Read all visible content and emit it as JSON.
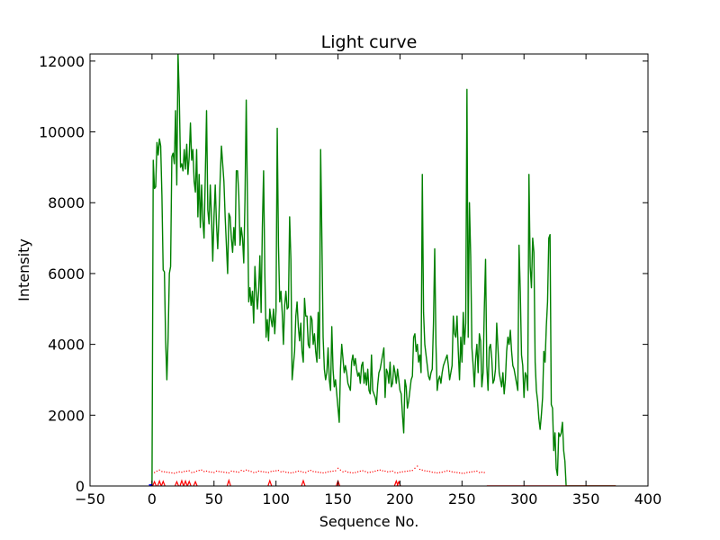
{
  "chart_data": {
    "type": "line",
    "title": "Light curve",
    "xlabel": "Sequence No.",
    "ylabel": "Intensity",
    "xlim": [
      -50,
      400
    ],
    "ylim": [
      0,
      12200
    ],
    "xticks": [
      -50,
      0,
      50,
      100,
      150,
      200,
      250,
      300,
      350,
      400
    ],
    "yticks": [
      0,
      2000,
      4000,
      6000,
      8000,
      10000,
      12000
    ],
    "grid": false,
    "legend": "none",
    "series": [
      {
        "style": "solid-line",
        "color": "#008000",
        "x": [
          0,
          1,
          2,
          3,
          4,
          5,
          6,
          7,
          8,
          9,
          10,
          11,
          12,
          13,
          14,
          15,
          16,
          17,
          18,
          19,
          20,
          21,
          22,
          23,
          24,
          25,
          26,
          27,
          28,
          29,
          30,
          31,
          32,
          33,
          34,
          35,
          36,
          37,
          38,
          39,
          40,
          41,
          42,
          43,
          44,
          45,
          46,
          47,
          48,
          49,
          50,
          51,
          52,
          53,
          54,
          55,
          56,
          57,
          58,
          59,
          60,
          61,
          62,
          63,
          64,
          65,
          66,
          67,
          68,
          69,
          70,
          71,
          72,
          73,
          74,
          75,
          76,
          77,
          78,
          79,
          80,
          81,
          82,
          83,
          84,
          85,
          86,
          87,
          88,
          89,
          90,
          91,
          92,
          93,
          94,
          95,
          96,
          97,
          98,
          99,
          100,
          101,
          102,
          103,
          104,
          105,
          106,
          107,
          108,
          109,
          110,
          111,
          112,
          113,
          114,
          115,
          116,
          117,
          118,
          119,
          120,
          121,
          122,
          123,
          124,
          125,
          126,
          127,
          128,
          129,
          130,
          131,
          132,
          133,
          134,
          135,
          136,
          137,
          138,
          139,
          140,
          141,
          142,
          143,
          144,
          145,
          146,
          147,
          148,
          149,
          150,
          151,
          152,
          153,
          154,
          155,
          156,
          157,
          158,
          159,
          160,
          161,
          162,
          163,
          164,
          165,
          166,
          167,
          168,
          169,
          170,
          171,
          172,
          173,
          174,
          175,
          176,
          177,
          178,
          179,
          180,
          181,
          182,
          183,
          184,
          185,
          186,
          187,
          188,
          189,
          190,
          191,
          192,
          193,
          194,
          195,
          196,
          197,
          198,
          199,
          200,
          201,
          202,
          203,
          204,
          205,
          206,
          207,
          208,
          209,
          210,
          211,
          212,
          213,
          214,
          215,
          216,
          217,
          218,
          219,
          220,
          221,
          222,
          223,
          224,
          225,
          226,
          227,
          228,
          229,
          230,
          231,
          232,
          233,
          234,
          235,
          236,
          237,
          238,
          239,
          240,
          241,
          242,
          243,
          244,
          245,
          246,
          247,
          248,
          249,
          250,
          251,
          252,
          253,
          254,
          255,
          256,
          257,
          258,
          259,
          260,
          261,
          262,
          263,
          264,
          265,
          266,
          267,
          268,
          269,
          270,
          271,
          272,
          273,
          274,
          275,
          276,
          277,
          278,
          279,
          280,
          281,
          282,
          283,
          284,
          285,
          286,
          287,
          288,
          289,
          290,
          291,
          292,
          293,
          294,
          295,
          296,
          297,
          298,
          299,
          300,
          301,
          302,
          303,
          304,
          305,
          306,
          307,
          308,
          309,
          310,
          311,
          312,
          313,
          314,
          315,
          316,
          317,
          318,
          319,
          320,
          321,
          322,
          323,
          324,
          325,
          326,
          327,
          328,
          329,
          330,
          331,
          332,
          333,
          334,
          335,
          336,
          337,
          338,
          339,
          340,
          341,
          342,
          343,
          344,
          345,
          346,
          347,
          348,
          349,
          350,
          351,
          352,
          353,
          354,
          355,
          356,
          357,
          358,
          359,
          360,
          361,
          362,
          363,
          364,
          365,
          366,
          367,
          368,
          369,
          370,
          371,
          372,
          373,
          374
        ],
        "y": [
          0,
          9200,
          8400,
          8450,
          9700,
          9350,
          9800,
          9600,
          8200,
          6100,
          6050,
          4100,
          3000,
          4200,
          6000,
          6200,
          9300,
          9400,
          9100,
          10600,
          8500,
          12200,
          11000,
          9000,
          9100,
          8900,
          9500,
          8950,
          9650,
          8800,
          9300,
          10250,
          9200,
          9500,
          8600,
          8300,
          9500,
          7600,
          8800,
          7300,
          8500,
          7500,
          7000,
          8800,
          10600,
          7800,
          7400,
          8500,
          7600,
          6350,
          7600,
          8500,
          7400,
          6700,
          7600,
          8700,
          9600,
          9100,
          8600,
          7600,
          6800,
          6000,
          7700,
          7600,
          7000,
          6600,
          7300,
          6800,
          8900,
          8900,
          8200,
          6800,
          7300,
          7000,
          6300,
          8100,
          10900,
          8000,
          5200,
          5600,
          5100,
          5500,
          4600,
          6200,
          5500,
          5000,
          5500,
          6500,
          4900,
          7300,
          8900,
          6000,
          4200,
          4700,
          4100,
          5000,
          4700,
          4500,
          5000,
          4300,
          4950,
          10100,
          6800,
          5200,
          5500,
          4900,
          4000,
          5100,
          5500,
          5000,
          5050,
          7600,
          6400,
          3000,
          3400,
          3800,
          4800,
          5200,
          4500,
          4100,
          4600,
          3800,
          3500,
          5300,
          4800,
          4800,
          4000,
          3900,
          4800,
          4700,
          4000,
          4300,
          3800,
          3500,
          4900,
          3600,
          9500,
          7000,
          4200,
          3300,
          3000,
          3200,
          3900,
          3000,
          2700,
          4500,
          3300,
          2800,
          3000,
          2600,
          2200,
          1800,
          3300,
          4000,
          3600,
          3200,
          3400,
          3200,
          2900,
          2800,
          2700,
          3500,
          3700,
          3400,
          3600,
          3300,
          3100,
          3200,
          2900,
          3400,
          3500,
          2900,
          3200,
          2850,
          3300,
          2700,
          2600,
          3700,
          2700,
          2600,
          2500,
          2300,
          2850,
          3200,
          3300,
          3500,
          3700,
          3900,
          2500,
          3300,
          3200,
          2900,
          3500,
          2800,
          2900,
          3400,
          3200,
          2900,
          3300,
          3000,
          2700,
          2600,
          2000,
          1500,
          3000,
          2800,
          2200,
          2400,
          2700,
          3000,
          3100,
          4200,
          4300,
          3800,
          4000,
          3500,
          3700,
          3200,
          8800,
          4900,
          4000,
          3700,
          3400,
          3100,
          3000,
          3200,
          3300,
          4600,
          6700,
          4000,
          2700,
          3000,
          3100,
          2900,
          3200,
          3400,
          3500,
          3600,
          3700,
          3400,
          3000,
          3200,
          3400,
          4800,
          4300,
          4200,
          4800,
          3800,
          3000,
          4200,
          3500,
          4900,
          4000,
          4600,
          11200,
          4200,
          8000,
          6500,
          3900,
          3400,
          2800,
          3600,
          4000,
          3200,
          4300,
          4100,
          2800,
          3200,
          5000,
          6400,
          3400,
          2700,
          3900,
          4000,
          3600,
          2900,
          3000,
          3300,
          4600,
          3900,
          3200,
          3000,
          2800,
          3200,
          2600,
          3000,
          3800,
          4200,
          4000,
          4400,
          3800,
          3400,
          3300,
          3100,
          2900,
          2700,
          6800,
          5500,
          3700,
          3400,
          2500,
          3200,
          3100,
          2700,
          8800,
          6200,
          5600,
          7000,
          6600,
          3500,
          2700,
          2400,
          1900,
          1600,
          2000,
          2500,
          3800,
          3500,
          4500,
          5200,
          7000,
          7100,
          2300,
          2200,
          1000,
          1500,
          500,
          300,
          1500,
          1400,
          1500,
          1800,
          1000,
          700,
          0,
          0,
          0,
          0,
          0,
          0,
          0,
          0,
          0,
          0,
          0,
          0,
          0,
          0,
          0,
          0,
          0,
          0,
          0,
          0,
          0,
          0,
          0,
          0,
          0,
          0,
          0,
          0,
          0,
          0,
          0,
          0,
          0,
          0,
          0,
          0,
          0,
          0,
          0,
          0,
          0
        ]
      },
      {
        "style": "dotted-points",
        "color": "#ff0000",
        "x_start": 0,
        "x_end": 270,
        "x_step": 2,
        "values": [
          0,
          380,
          420,
          450,
          410,
          400,
          390,
          380,
          370,
          360,
          380,
          400,
          390,
          410,
          420,
          430,
          380,
          390,
          420,
          440,
          450,
          410,
          420,
          400,
          390,
          380,
          420,
          410,
          400,
          390,
          380,
          370,
          420,
          410,
          400,
          390,
          440,
          420,
          450,
          430,
          410,
          380,
          390,
          420,
          410,
          400,
          390,
          380,
          410,
          420,
          430,
          440,
          400,
          410,
          390,
          380,
          370,
          380,
          400,
          420,
          410,
          390,
          380,
          420,
          440,
          410,
          400,
          390,
          380,
          370,
          380,
          400,
          410,
          420,
          430,
          500,
          450,
          400,
          420,
          390,
          380,
          370,
          380,
          400,
          420,
          430,
          410,
          380,
          390,
          400,
          420,
          440,
          450,
          430,
          420,
          400,
          410,
          420,
          380,
          370,
          390,
          400,
          410,
          420,
          430,
          440,
          500,
          560,
          470,
          450,
          430,
          420,
          410,
          390,
          380,
          370,
          380,
          390,
          410,
          430,
          420,
          400,
          390,
          380,
          370,
          360,
          360,
          380,
          390,
          400,
          410,
          420,
          380,
          390,
          380
        ]
      },
      {
        "style": "spikes",
        "color": "#ff0000",
        "x": [
          2,
          6,
          9,
          20,
          24,
          27,
          30,
          35,
          62,
          95,
          122,
          150,
          197,
          199
        ],
        "y": [
          120,
          140,
          130,
          120,
          150,
          140,
          130,
          120,
          160,
          150,
          150,
          140,
          140,
          120
        ]
      },
      {
        "style": "marker",
        "color": "#0000ff",
        "x": [
          -1
        ],
        "y": [
          0
        ]
      }
    ]
  }
}
